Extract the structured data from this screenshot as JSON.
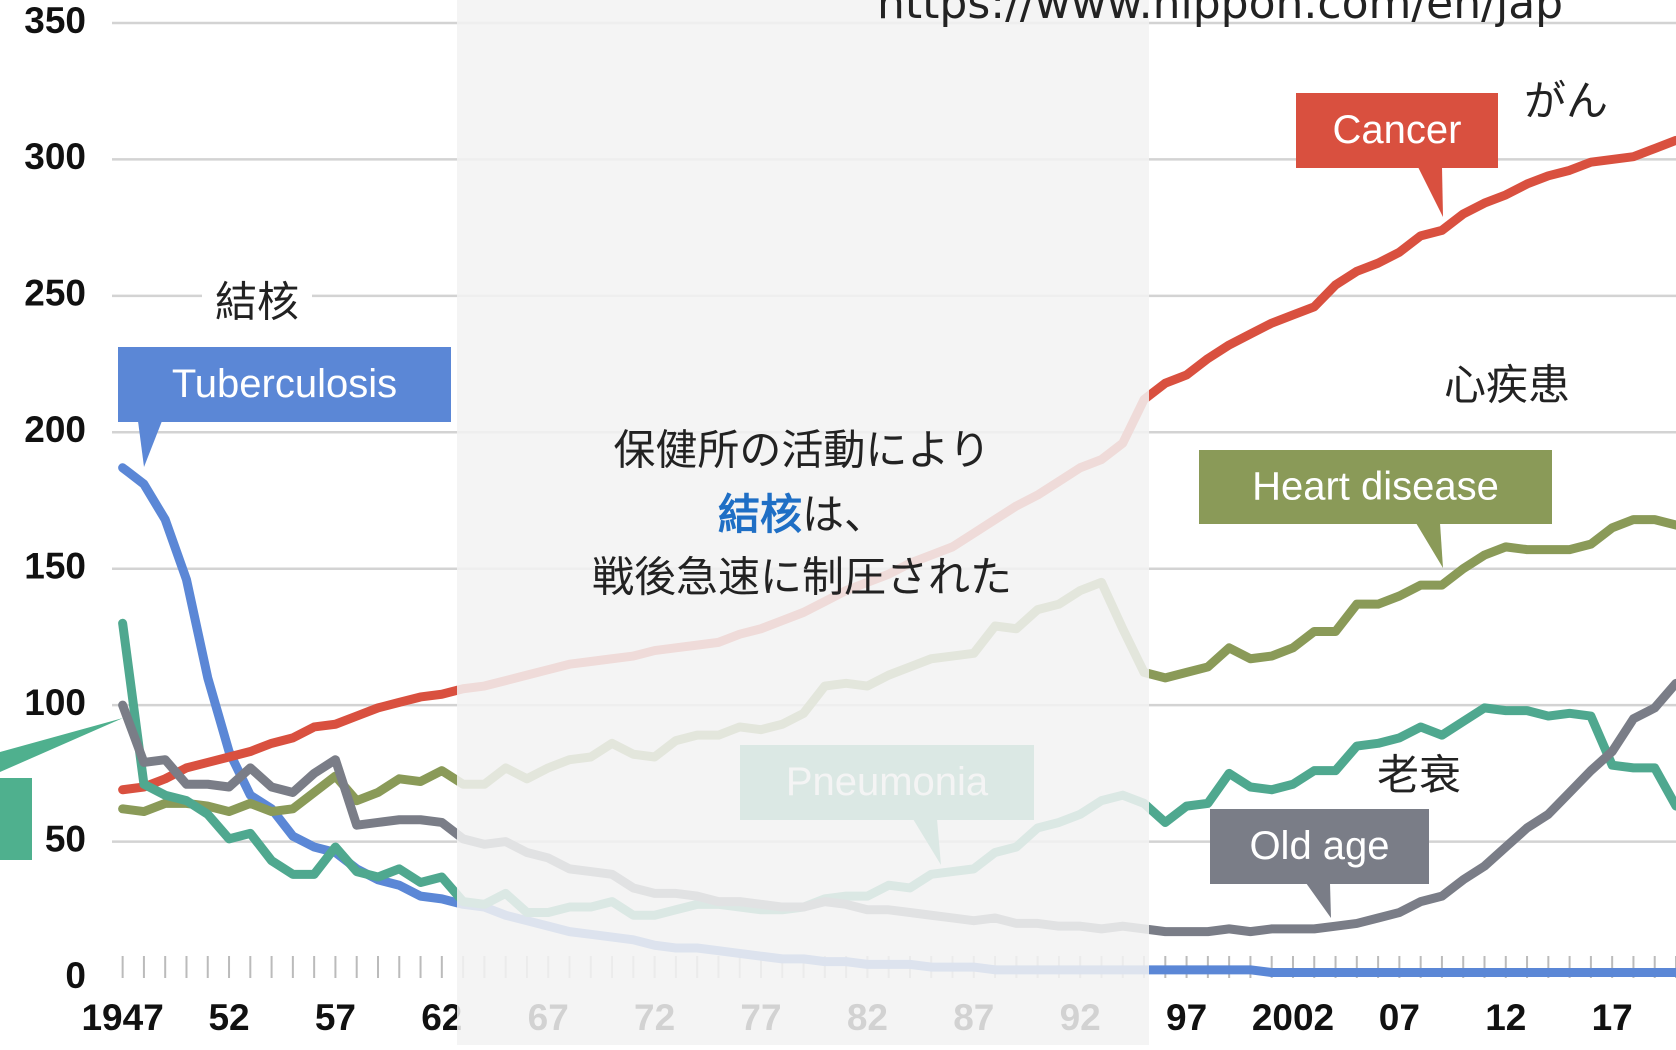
{
  "chart_data": {
    "type": "line",
    "source_text": "https://www.nippon.com/en/jap",
    "x": [
      1947,
      1948,
      1949,
      1950,
      1951,
      1952,
      1953,
      1954,
      1955,
      1956,
      1957,
      1958,
      1959,
      1960,
      1961,
      1962,
      1963,
      1964,
      1965,
      1966,
      1967,
      1968,
      1969,
      1970,
      1971,
      1972,
      1973,
      1974,
      1975,
      1976,
      1977,
      1978,
      1979,
      1980,
      1981,
      1982,
      1983,
      1984,
      1985,
      1986,
      1987,
      1988,
      1989,
      1990,
      1991,
      1992,
      1993,
      1994,
      1995,
      1996,
      1997,
      1998,
      1999,
      2000,
      2001,
      2002,
      2003,
      2004,
      2005,
      2006,
      2007,
      2008,
      2009,
      2010,
      2011,
      2012,
      2013,
      2014,
      2015,
      2016,
      2017,
      2018,
      2019,
      2020
    ],
    "xlim": [
      1946.5,
      2020
    ],
    "xticks": [
      1947,
      {
        "value": 1952,
        "label": "52"
      },
      {
        "value": 1957,
        "label": "57"
      },
      {
        "value": 1962,
        "label": "62"
      },
      {
        "value": 1967,
        "label": "67"
      },
      {
        "value": 1972,
        "label": "72"
      },
      {
        "value": 1977,
        "label": "77"
      },
      {
        "value": 1982,
        "label": "82"
      },
      {
        "value": 1987,
        "label": "87"
      },
      {
        "value": 1992,
        "label": "92"
      },
      {
        "value": 1997,
        "label": "97"
      },
      2002,
      {
        "value": 2007,
        "label": "07"
      },
      {
        "value": 2012,
        "label": "12"
      },
      {
        "value": 2017,
        "label": "17"
      }
    ],
    "ylim": [
      0,
      350
    ],
    "yticks": [
      0,
      50,
      100,
      150,
      200,
      250,
      300,
      350
    ],
    "grid": true,
    "series": [
      {
        "name": "Tuberculosis",
        "jp": "結核",
        "color": "#5b87d6",
        "values": [
          187,
          181,
          168,
          146,
          110,
          83,
          67,
          62,
          52,
          48,
          46,
          40,
          36,
          34,
          30,
          29,
          27,
          26,
          23,
          21,
          19,
          17,
          16,
          15,
          14,
          12,
          11,
          11,
          10,
          9,
          8,
          7,
          7,
          6,
          6,
          5,
          5,
          5,
          4,
          4,
          4,
          3,
          3,
          3,
          3,
          3,
          3,
          3,
          3,
          3,
          3,
          3,
          3,
          3,
          2,
          2,
          2,
          2,
          2,
          2,
          2,
          2,
          2,
          2,
          2,
          2,
          2,
          2,
          2,
          2,
          2,
          2,
          2,
          2
        ]
      },
      {
        "name": "Cancer",
        "jp": "がん",
        "color": "#d9503f",
        "values": [
          69,
          70,
          73,
          77,
          79,
          81,
          83,
          86,
          88,
          92,
          93,
          96,
          99,
          101,
          103,
          104,
          106,
          107,
          109,
          111,
          113,
          115,
          116,
          117,
          118,
          120,
          121,
          122,
          123,
          126,
          128,
          131,
          134,
          138,
          142,
          145,
          148,
          152,
          155,
          158,
          163,
          168,
          173,
          177,
          182,
          187,
          190,
          196,
          212,
          218,
          221,
          227,
          232,
          236,
          240,
          243,
          246,
          254,
          259,
          262,
          266,
          272,
          274,
          280,
          284,
          287,
          291,
          294,
          296,
          299,
          300,
          301,
          304,
          307
        ]
      },
      {
        "name": "Heart disease",
        "jp": "心疾患",
        "color": "#8a9a58",
        "values": [
          62,
          61,
          64,
          64,
          63,
          61,
          64,
          61,
          62,
          68,
          74,
          65,
          68,
          73,
          72,
          76,
          71,
          71,
          77,
          73,
          77,
          80,
          81,
          86,
          82,
          81,
          87,
          89,
          89,
          92,
          91,
          93,
          97,
          107,
          108,
          107,
          111,
          114,
          117,
          118,
          119,
          129,
          128,
          135,
          137,
          142,
          145,
          128,
          112,
          110,
          112,
          114,
          121,
          117,
          118,
          121,
          127,
          127,
          137,
          137,
          140,
          144,
          144,
          150,
          155,
          158,
          157,
          157,
          157,
          159,
          165,
          168,
          168,
          166
        ]
      },
      {
        "name": "Pneumonia",
        "color": "#4fa88f",
        "values": [
          130,
          71,
          67,
          65,
          60,
          51,
          53,
          43,
          38,
          38,
          48,
          39,
          37,
          40,
          35,
          37,
          28,
          27,
          31,
          24,
          24,
          26,
          26,
          28,
          23,
          23,
          25,
          27,
          27,
          26,
          25,
          25,
          26,
          29,
          30,
          30,
          34,
          33,
          38,
          39,
          40,
          46,
          48,
          55,
          57,
          60,
          65,
          67,
          64,
          57,
          63,
          64,
          75,
          70,
          69,
          71,
          76,
          76,
          85,
          86,
          88,
          92,
          89,
          94,
          99,
          98,
          98,
          96,
          97,
          96,
          78,
          77,
          77,
          63
        ]
      },
      {
        "name": "Old age",
        "jp": "老衰",
        "color": "#7a7d87",
        "values": [
          100,
          79,
          80,
          71,
          71,
          70,
          77,
          70,
          68,
          75,
          80,
          56,
          57,
          58,
          58,
          57,
          51,
          49,
          50,
          46,
          44,
          40,
          39,
          38,
          33,
          31,
          31,
          30,
          28,
          28,
          27,
          26,
          26,
          28,
          27,
          25,
          25,
          24,
          23,
          22,
          21,
          22,
          20,
          20,
          19,
          19,
          18,
          19,
          18,
          17,
          17,
          17,
          18,
          17,
          18,
          18,
          18,
          19,
          20,
          22,
          24,
          28,
          30,
          36,
          41,
          48,
          55,
          60,
          68,
          76,
          83,
          95,
          99,
          108
        ]
      }
    ],
    "annotation": [
      "保健所の活動により",
      [
        "結核",
        "は、"
      ],
      "戦後急速に制圧された"
    ]
  }
}
